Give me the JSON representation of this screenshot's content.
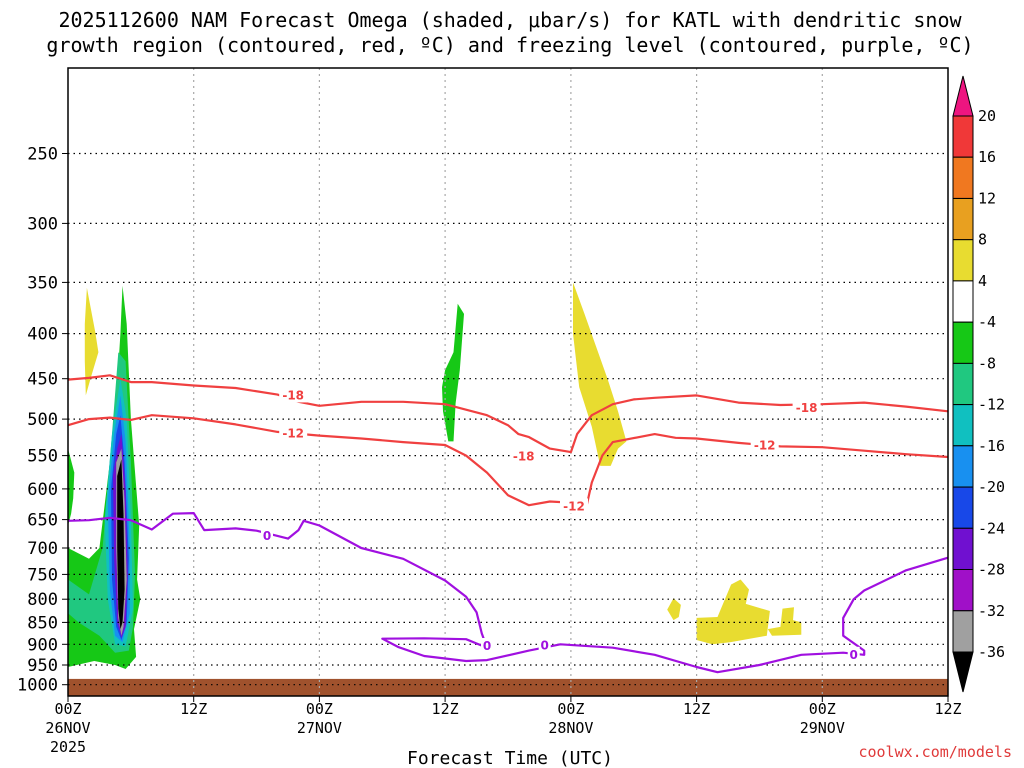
{
  "chart_data": {
    "type": "heatmap",
    "title_lines": [
      "2025112600 NAM Forecast Omega (shaded, μbar/s) for KATL with dendritic snow",
      "growth region (contoured, red, ºC) and freezing level (contoured, purple, ºC)"
    ],
    "xlabel": "Forecast Time (UTC)",
    "xlim": [
      0,
      84
    ],
    "ylim": [
      1030,
      200
    ],
    "y_axis_scale": "log-pressure",
    "y_ticks": [
      250,
      300,
      350,
      400,
      450,
      500,
      550,
      600,
      650,
      700,
      750,
      800,
      850,
      900,
      950,
      1000
    ],
    "x_ticks": [
      {
        "hour": 0,
        "lines": [
          "00Z",
          "26NOV",
          "2025"
        ]
      },
      {
        "hour": 12,
        "lines": [
          "12Z"
        ]
      },
      {
        "hour": 24,
        "lines": [
          "00Z",
          "27NOV"
        ]
      },
      {
        "hour": 36,
        "lines": [
          "12Z"
        ]
      },
      {
        "hour": 48,
        "lines": [
          "00Z",
          "28NOV"
        ]
      },
      {
        "hour": 60,
        "lines": [
          "12Z"
        ]
      },
      {
        "hour": 72,
        "lines": [
          "00Z",
          "29NOV"
        ]
      },
      {
        "hour": 84,
        "lines": [
          "12Z"
        ]
      }
    ],
    "colorbar": {
      "labels": [
        "20",
        "16",
        "12",
        "8",
        "4",
        "-4",
        "-8",
        "-12",
        "-16",
        "-20",
        "-24",
        "-28",
        "-32",
        "-36"
      ],
      "colors": [
        "#ee1580",
        "#f03838",
        "#f07820",
        "#e8a020",
        "#e8dc30",
        "#ffffff",
        "#16c816",
        "#20c880",
        "#10c0c0",
        "#1890f0",
        "#1848e8",
        "#7010d0",
        "#a010c8",
        "#a0a0a0",
        "#000000"
      ]
    },
    "surface_pressure": 985,
    "surface_color": "#a0522d",
    "contours": [
      {
        "name": "dgz-18",
        "label": "-18",
        "color": "#f04040",
        "points": [
          [
            0,
            451
          ],
          [
            2,
            449
          ],
          [
            4,
            446
          ],
          [
            6,
            454
          ],
          [
            8,
            454
          ],
          [
            12,
            458
          ],
          [
            16,
            461
          ],
          [
            20,
            469
          ],
          [
            22,
            478
          ],
          [
            24,
            483
          ],
          [
            28,
            478
          ],
          [
            32,
            478
          ],
          [
            36,
            481
          ],
          [
            40,
            495
          ],
          [
            42,
            508
          ],
          [
            43,
            520
          ],
          [
            44,
            524
          ],
          [
            46,
            540
          ],
          [
            48,
            545
          ],
          [
            48.6,
            520
          ],
          [
            50,
            495
          ],
          [
            52,
            481
          ],
          [
            54,
            475
          ],
          [
            56,
            473
          ],
          [
            60,
            470
          ],
          [
            64,
            479
          ],
          [
            68,
            482
          ],
          [
            72,
            481
          ],
          [
            76,
            479
          ],
          [
            80,
            484
          ],
          [
            84,
            490
          ]
        ],
        "labels_at": [
          [
            21.5,
            470
          ],
          [
            43.5,
            551
          ],
          [
            70.5,
            486
          ]
        ]
      },
      {
        "name": "dgz-12",
        "label": "-12",
        "color": "#f04040",
        "points": [
          [
            0,
            508
          ],
          [
            2,
            500
          ],
          [
            4,
            498
          ],
          [
            6,
            501
          ],
          [
            8,
            495
          ],
          [
            12,
            499
          ],
          [
            16,
            507
          ],
          [
            20,
            517
          ],
          [
            24,
            522
          ],
          [
            28,
            526
          ],
          [
            32,
            531
          ],
          [
            36,
            535
          ],
          [
            38,
            550
          ],
          [
            40,
            575
          ],
          [
            42,
            610
          ],
          [
            44,
            626
          ],
          [
            46,
            620
          ],
          [
            48,
            622
          ],
          [
            49.5,
            627
          ],
          [
            50,
            590
          ],
          [
            51,
            550
          ],
          [
            52,
            531
          ],
          [
            56,
            520
          ],
          [
            58,
            525
          ],
          [
            60,
            526
          ],
          [
            64,
            532
          ],
          [
            68,
            537
          ],
          [
            72,
            538
          ],
          [
            76,
            543
          ],
          [
            80,
            548
          ],
          [
            84,
            552
          ]
        ],
        "labels_at": [
          [
            21.5,
            519
          ],
          [
            48.3,
            628
          ],
          [
            66.5,
            536
          ]
        ]
      },
      {
        "name": "freezing-0",
        "label": "0",
        "color": "#a010e0",
        "points": [
          [
            0,
            652
          ],
          [
            2,
            651
          ],
          [
            4,
            647
          ],
          [
            6,
            651
          ],
          [
            8,
            667
          ],
          [
            10,
            640
          ],
          [
            12,
            639
          ],
          [
            13,
            668
          ],
          [
            16,
            665
          ],
          [
            18,
            669
          ],
          [
            21,
            683
          ],
          [
            22,
            668
          ],
          [
            22.5,
            652
          ],
          [
            24,
            660
          ],
          [
            28,
            700
          ],
          [
            32,
            720
          ],
          [
            36,
            762
          ],
          [
            38,
            795
          ],
          [
            39,
            828
          ],
          [
            39.5,
            875
          ],
          [
            40,
            908
          ],
          [
            39,
            898
          ],
          [
            38,
            888
          ],
          [
            34,
            886
          ],
          [
            30,
            887
          ],
          [
            31.5,
            906
          ],
          [
            34,
            928
          ],
          [
            38,
            940
          ],
          [
            40,
            938
          ],
          [
            44,
            915
          ],
          [
            47,
            900
          ],
          [
            52,
            908
          ],
          [
            56,
            925
          ],
          [
            60,
            955
          ],
          [
            62,
            968
          ],
          [
            66,
            950
          ],
          [
            70,
            925
          ],
          [
            74,
            920
          ],
          [
            76,
            925
          ],
          [
            76,
            915
          ],
          [
            74,
            880
          ],
          [
            74,
            840
          ],
          [
            75,
            800
          ],
          [
            76,
            782
          ],
          [
            80,
            742
          ],
          [
            84,
            718
          ]
        ],
        "labels_at": [
          [
            19,
            678
          ],
          [
            40,
            904
          ],
          [
            45.5,
            903
          ],
          [
            75,
            925
          ]
        ]
      }
    ],
    "shaded_regions": [
      {
        "name": "omega-pos4-upper-left",
        "color": "#e8dc30",
        "points": [
          [
            1.8,
            355
          ],
          [
            2.6,
            398
          ],
          [
            2.9,
            420
          ],
          [
            2.2,
            448
          ],
          [
            1.7,
            470
          ],
          [
            1.6,
            430
          ],
          [
            1.6,
            390
          ]
        ]
      },
      {
        "name": "omega-neg4-left-edge",
        "color": "#16c816",
        "points": [
          [
            0,
            540
          ],
          [
            0.6,
            575
          ],
          [
            0.5,
            615
          ],
          [
            0.3,
            640
          ],
          [
            0,
            660
          ]
        ]
      },
      {
        "name": "omega-neg4-main",
        "color": "#16c816",
        "points": [
          [
            0,
            700
          ],
          [
            2,
            720
          ],
          [
            3,
            700
          ],
          [
            4.5,
            500
          ],
          [
            5,
            400
          ],
          [
            5.2,
            353
          ],
          [
            5.6,
            390
          ],
          [
            6,
            500
          ],
          [
            6.8,
            660
          ],
          [
            6.6,
            760
          ],
          [
            6.9,
            800
          ],
          [
            6.3,
            865
          ],
          [
            6.5,
            930
          ],
          [
            5.5,
            960
          ],
          [
            4.5,
            950
          ],
          [
            2.5,
            940
          ],
          [
            0,
            955
          ]
        ]
      },
      {
        "name": "omega-neg8-main",
        "color": "#20c880",
        "points": [
          [
            0,
            760
          ],
          [
            2,
            790
          ],
          [
            3.3,
            700
          ],
          [
            4.2,
            520
          ],
          [
            4.8,
            420
          ],
          [
            5.5,
            430
          ],
          [
            6,
            560
          ],
          [
            6.4,
            750
          ],
          [
            6.2,
            860
          ],
          [
            5.8,
            915
          ],
          [
            4.5,
            920
          ],
          [
            3,
            880
          ],
          [
            1,
            850
          ],
          [
            0,
            830
          ]
        ]
      },
      {
        "name": "omega-neg12-main",
        "color": "#10c0c0",
        "points": [
          [
            3.5,
            650
          ],
          [
            4.2,
            520
          ],
          [
            5,
            450
          ],
          [
            5.6,
            500
          ],
          [
            6,
            650
          ],
          [
            6.2,
            820
          ],
          [
            5.5,
            905
          ],
          [
            4.5,
            900
          ],
          [
            3.8,
            800
          ]
        ]
      },
      {
        "name": "omega-neg16-main",
        "color": "#1890f0",
        "points": [
          [
            3.8,
            620
          ],
          [
            4.4,
            520
          ],
          [
            5,
            470
          ],
          [
            5.5,
            530
          ],
          [
            5.9,
            700
          ],
          [
            5.9,
            830
          ],
          [
            5.2,
            895
          ],
          [
            4.5,
            880
          ],
          [
            4,
            780
          ]
        ]
      },
      {
        "name": "omega-neg24-main",
        "color": "#1848e8",
        "points": [
          [
            4.1,
            600
          ],
          [
            4.6,
            520
          ],
          [
            5,
            495
          ],
          [
            5.4,
            560
          ],
          [
            5.8,
            720
          ],
          [
            5.6,
            850
          ],
          [
            5.1,
            890
          ],
          [
            4.6,
            860
          ],
          [
            4.2,
            760
          ]
        ]
      },
      {
        "name": "omega-neg28-main",
        "color": "#7010d0",
        "points": [
          [
            4.3,
            580
          ],
          [
            4.7,
            540
          ],
          [
            5.1,
            520
          ],
          [
            5.5,
            600
          ],
          [
            5.7,
            750
          ],
          [
            5.5,
            860
          ],
          [
            5.1,
            885
          ],
          [
            4.7,
            850
          ],
          [
            4.4,
            720
          ]
        ]
      },
      {
        "name": "omega-neg32-main",
        "color": "#a0a0a0",
        "points": [
          [
            4.6,
            560
          ],
          [
            5.1,
            540
          ],
          [
            5.4,
            620
          ],
          [
            5.6,
            760
          ],
          [
            5.3,
            860
          ],
          [
            5.1,
            880
          ],
          [
            4.8,
            840
          ],
          [
            4.6,
            700
          ]
        ]
      },
      {
        "name": "omega-neg36-core",
        "color": "#000000",
        "points": [
          [
            4.7,
            580
          ],
          [
            5.1,
            555
          ],
          [
            5.3,
            640
          ],
          [
            5.4,
            780
          ],
          [
            5.2,
            850
          ],
          [
            5.0,
            865
          ],
          [
            4.8,
            820
          ],
          [
            4.7,
            700
          ]
        ]
      },
      {
        "name": "omega-neg4-hour36",
        "color": "#16c816",
        "points": [
          [
            37.2,
            370
          ],
          [
            37.8,
            380
          ],
          [
            37.4,
            440
          ],
          [
            37,
            480
          ],
          [
            36.8,
            530
          ],
          [
            36.3,
            530
          ],
          [
            35.8,
            490
          ],
          [
            35.7,
            460
          ],
          [
            36,
            440
          ],
          [
            36.8,
            420
          ]
        ]
      },
      {
        "name": "omega-pos4-hour48",
        "color": "#e8dc30",
        "points": [
          [
            48.2,
            350
          ],
          [
            49.3,
            380
          ],
          [
            50.6,
            420
          ],
          [
            51.5,
            450
          ],
          [
            52.5,
            490
          ],
          [
            53.3,
            530
          ],
          [
            52.5,
            540
          ],
          [
            51.8,
            565
          ],
          [
            50.8,
            565
          ],
          [
            50,
            510
          ],
          [
            48.8,
            460
          ],
          [
            48.2,
            400
          ]
        ]
      },
      {
        "name": "omega-pos4-blob-a",
        "color": "#e8dc30",
        "points": [
          [
            57.8,
            798
          ],
          [
            58.5,
            812
          ],
          [
            58.3,
            838
          ],
          [
            57.8,
            845
          ],
          [
            57.2,
            822
          ]
        ]
      },
      {
        "name": "omega-pos4-blob-b",
        "color": "#e8dc30",
        "points": [
          [
            60,
            840
          ],
          [
            62,
            838
          ],
          [
            63.3,
            770
          ],
          [
            64.2,
            760
          ],
          [
            65,
            780
          ],
          [
            64.7,
            810
          ],
          [
            67,
            825
          ],
          [
            66.7,
            880
          ],
          [
            63.2,
            895
          ],
          [
            61.5,
            900
          ],
          [
            60,
            890
          ]
        ]
      },
      {
        "name": "omega-pos4-blob-c",
        "color": "#e8dc30",
        "points": [
          [
            68.2,
            820
          ],
          [
            69.3,
            817
          ],
          [
            69.2,
            845
          ],
          [
            70,
            850
          ],
          [
            70,
            878
          ],
          [
            67.2,
            880
          ],
          [
            66.8,
            865
          ],
          [
            68,
            860
          ]
        ]
      }
    ]
  },
  "footer": {
    "credit": "coolwx.com/models"
  }
}
